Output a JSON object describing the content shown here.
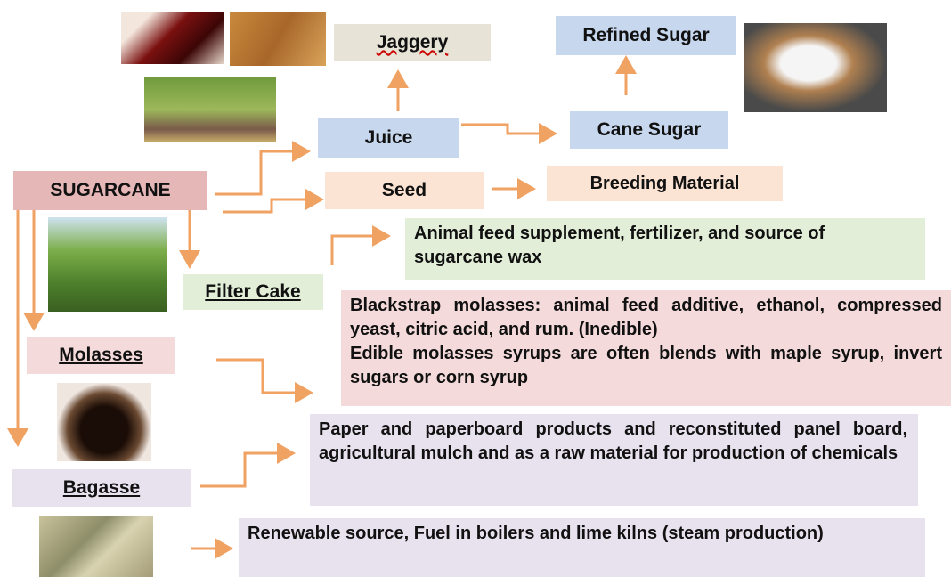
{
  "nodes": {
    "jaggery": "Jaggery",
    "refined_sugar": "Refined Sugar",
    "juice": "Juice",
    "cane_sugar": "Cane Sugar",
    "sugarcane": "SUGARCANE",
    "seed": "Seed",
    "breeding_material": "Breeding Material",
    "filter_cake": "Filter Cake",
    "molasses": "Molasses",
    "bagasse": "Bagasse"
  },
  "descriptions": {
    "filter_cake_uses": "Animal feed supplement, fertilizer, and source of sugarcane wax",
    "molasses_uses": [
      "Blackstrap molasses: animal feed additive, ethanol, compressed yeast, citric acid, and rum. (Inedible)",
      "Edible molasses syrups are often blends with maple syrup, invert sugars or corn syrup"
    ],
    "bagasse_uses": "Paper and paperboard products and reconstituted panel board, agricultural mulch and as a raw material for production of chemicals",
    "bagasse_fuel": "Renewable source, Fuel in boilers and lime kilns (steam production)"
  }
}
